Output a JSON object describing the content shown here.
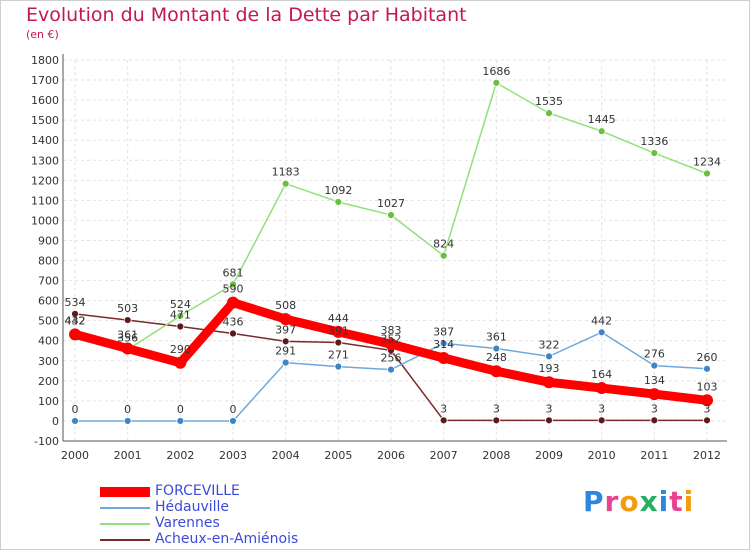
{
  "chart_data": {
    "type": "line",
    "title": "Evolution du Montant de la Dette par Habitant",
    "subtitle": "(en €)",
    "x": [
      "2000",
      "2001",
      "2002",
      "2003",
      "2004",
      "2005",
      "2006",
      "2007",
      "2008",
      "2009",
      "2010",
      "2011",
      "2012"
    ],
    "ylim": [
      -100,
      1800
    ],
    "yticks": [
      -100,
      0,
      100,
      200,
      300,
      400,
      500,
      600,
      700,
      800,
      900,
      1000,
      1100,
      1200,
      1300,
      1400,
      1500,
      1600,
      1700,
      1800
    ],
    "grid": true,
    "legend_position": "bottom-left",
    "series": [
      {
        "name": "FORCEVILLE",
        "color": "#ff0000",
        "marker": "#ff0000",
        "values": [
          432,
          361,
          290,
          590,
          508,
          444,
          383,
          314,
          248,
          193,
          164,
          134,
          103
        ]
      },
      {
        "name": "Hédauville",
        "color": "#6fa8dc",
        "marker": "#3d85c6",
        "values": [
          0,
          0,
          0,
          0,
          291,
          271,
          256,
          387,
          361,
          322,
          442,
          276,
          260
        ]
      },
      {
        "name": "Varennes",
        "color": "#93e07a",
        "marker": "#6abf3f",
        "values": [
          442,
          356,
          524,
          681,
          1183,
          1092,
          1027,
          824,
          1686,
          1535,
          1445,
          1336,
          1234
        ]
      },
      {
        "name": "Acheux-en-Amiénois",
        "color": "#7a2a2a",
        "marker": "#5c1a1a",
        "values": [
          534,
          503,
          471,
          436,
          397,
          391,
          352,
          3,
          3,
          3,
          3,
          3,
          3
        ]
      }
    ]
  },
  "logo": {
    "text": "Proxiti"
  }
}
